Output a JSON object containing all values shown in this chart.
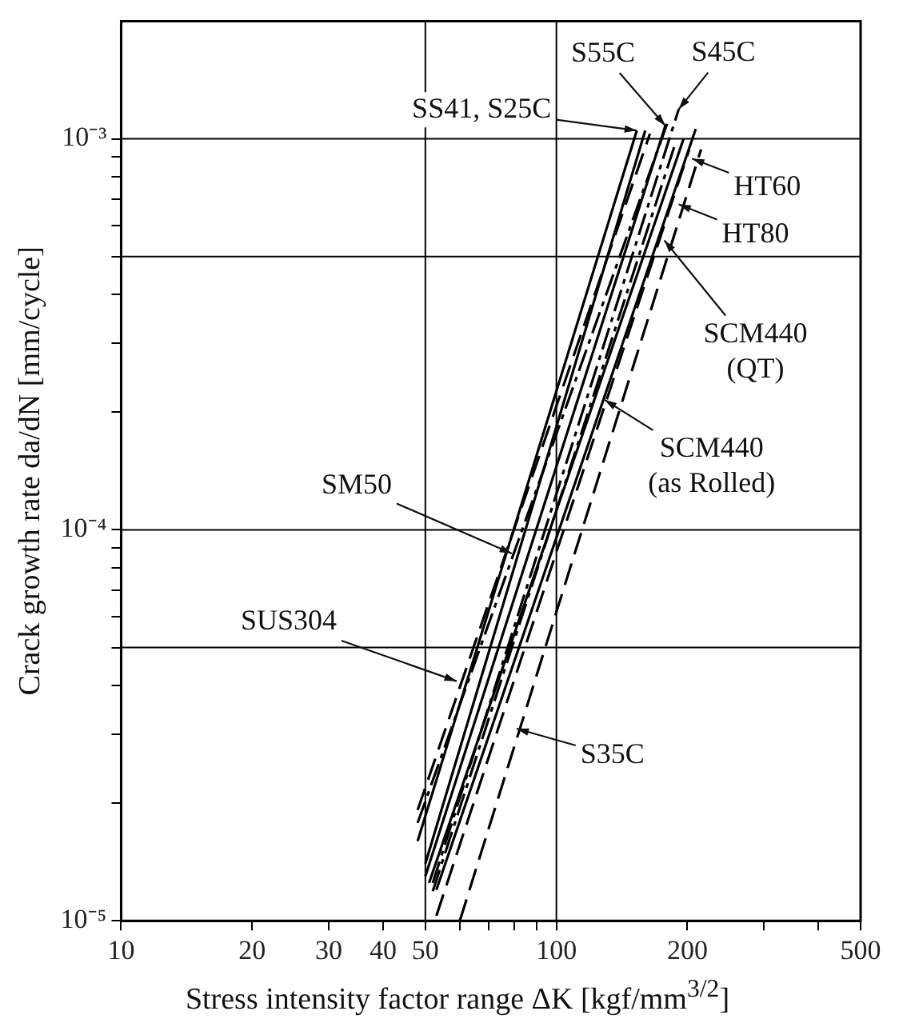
{
  "chart_data": {
    "type": "line",
    "ylabel": "Crack growth rate da/dN [mm/cycle]",
    "xlabel": "Stress intensity factor range ΔK [kgf/mm$^{3/2}$]",
    "log": "xy",
    "grid": false,
    "legend": false,
    "marker": "none",
    "xlim": [
      10,
      500
    ],
    "ylim": [
      1e-05,
      0.002
    ],
    "xticks": [
      10,
      20,
      30,
      40,
      50,
      {
        "value": 60,
        "label": null
      },
      {
        "value": 70,
        "label": null
      },
      {
        "value": 80,
        "label": null
      },
      {
        "value": 90,
        "label": null
      },
      100,
      200,
      {
        "value": 300,
        "label": null
      },
      {
        "value": 400,
        "label": null
      },
      500
    ],
    "yticks": [
      {
        "value": 1e-05,
        "label": "10⁻⁵"
      },
      {
        "value": 2e-05,
        "label": null
      },
      {
        "value": 3e-05,
        "label": null
      },
      {
        "value": 4e-05,
        "label": null
      },
      {
        "value": 5e-05,
        "label": null
      },
      {
        "value": 6e-05,
        "label": null
      },
      {
        "value": 7e-05,
        "label": null
      },
      {
        "value": 8e-05,
        "label": null
      },
      {
        "value": 9e-05,
        "label": null
      },
      {
        "value": 0.0001,
        "label": "10⁻⁴"
      },
      {
        "value": 0.0002,
        "label": null
      },
      {
        "value": 0.0003,
        "label": null
      },
      {
        "value": 0.0004,
        "label": null
      },
      {
        "value": 0.0005,
        "label": null
      },
      {
        "value": 0.0006,
        "label": null
      },
      {
        "value": 0.0007,
        "label": null
      },
      {
        "value": 0.0008,
        "label": null
      },
      {
        "value": 0.0009,
        "label": null
      },
      {
        "value": 0.001,
        "label": "10⁻³"
      }
    ],
    "ref_lines": [
      {
        "axis": "x",
        "value": 50,
        "color": "#000000"
      },
      {
        "axis": "x",
        "value": 100,
        "color": "#000000"
      },
      {
        "axis": "y",
        "value": 5e-05,
        "color": "#000000"
      },
      {
        "axis": "y",
        "value": 0.0001,
        "color": "#000000"
      },
      {
        "axis": "y",
        "value": 0.0005,
        "color": "#000000"
      },
      {
        "axis": "y",
        "value": 0.001,
        "color": "#000000"
      }
    ],
    "series": [
      {
        "color": "#000000",
        "line_style": "solid",
        "x": [
          48,
          153
        ],
        "values": [
          1.6e-05,
          0.00105
        ]
      },
      {
        "color": "#000000",
        "line_style": "solid",
        "x": [
          50,
          160
        ],
        "values": [
          1.4e-05,
          0.00105
        ]
      },
      {
        "color": "#000000",
        "line_style": "solid",
        "x": [
          50,
          178
        ],
        "values": [
          1.3e-05,
          0.00108
        ]
      },
      {
        "color": "#000000",
        "line_style": "dashdot",
        "x": [
          52,
          191
        ],
        "values": [
          1.25e-05,
          0.00119
        ]
      },
      {
        "color": "#000000",
        "line_style": "solid",
        "x": [
          53,
          209
        ],
        "values": [
          1.2e-05,
          0.00106
        ]
      },
      {
        "color": "#000000",
        "line_style": "dashed",
        "x": [
          53,
          202
        ],
        "values": [
          1.03e-05,
          0.00094
        ]
      },
      {
        "color": "#000000",
        "line_style": "solid",
        "x": [
          51,
          196
        ],
        "values": [
          1.25e-05,
          0.001
        ]
      },
      {
        "color": "#000000",
        "line_style": "dashdot",
        "x": [
          52,
          188
        ],
        "values": [
          1.19e-05,
          0.00098
        ]
      },
      {
        "color": "#000000",
        "line_style": "dashdot",
        "x": [
          48,
          180
        ],
        "values": [
          1.78e-05,
          0.0011
        ]
      },
      {
        "color": "#000000",
        "line_style": "dashed",
        "x": [
          48,
          164
        ],
        "values": [
          1.92e-05,
          0.00103
        ]
      },
      {
        "color": "#000000",
        "line_style": "dashed",
        "x": [
          60,
          215
        ],
        "values": [
          1e-05,
          0.00094
        ]
      }
    ],
    "annotations": [
      {
        "text": "SS41, S25C",
        "x": 153,
        "y": 0.00105
      },
      {
        "text": "S55C",
        "x": 178,
        "y": 0.00108
      },
      {
        "text": "S45C",
        "x": 191,
        "y": 0.00119
      },
      {
        "text": "HT60",
        "x": 205,
        "y": 0.00089
      },
      {
        "text": "HT80",
        "x": 191,
        "y": 0.00068
      },
      {
        "text": "SCM440\n(QT)",
        "x": 177,
        "y": 0.00055
      },
      {
        "text": "SCM440\n(as Rolled)",
        "x": 129,
        "y": 0.000215
      },
      {
        "text": "SM50",
        "x": 79,
        "y": 8.7e-05
      },
      {
        "text": "SUS304",
        "x": 59,
        "y": 4.1e-05
      },
      {
        "text": "S35C",
        "x": 81,
        "y": 3.1e-05
      }
    ]
  }
}
